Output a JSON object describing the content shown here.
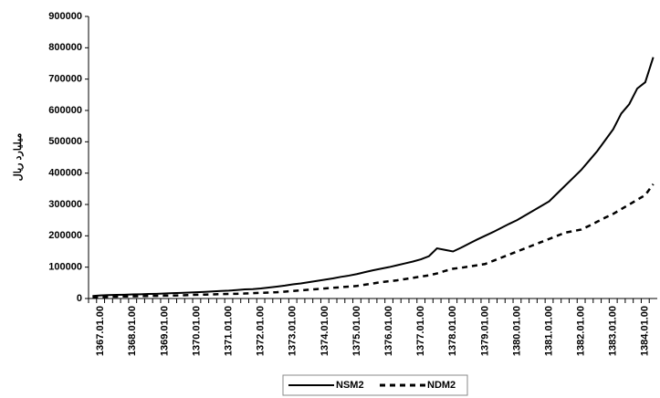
{
  "chart_data": {
    "type": "line",
    "y_label": "میلیارد ریال",
    "categories": [
      null,
      "1367.01.00",
      null,
      null,
      null,
      "1368.01.00",
      null,
      null,
      null,
      "1369.01.00",
      null,
      null,
      null,
      "1370.01.00",
      null,
      null,
      null,
      "1371.01.00",
      null,
      null,
      null,
      "1372.01.00",
      null,
      null,
      null,
      "1373.01.00",
      null,
      null,
      null,
      "1374.01.00",
      null,
      null,
      null,
      "1375.01.00",
      null,
      null,
      null,
      "1376.01.00",
      null,
      null,
      null,
      "1377.01.00",
      null,
      null,
      null,
      "1378.01.00",
      null,
      null,
      null,
      "1379.01.00",
      null,
      null,
      null,
      "1380.01.00",
      null,
      null,
      null,
      "1381.01.00",
      null,
      null,
      null,
      "1382.01.00",
      null,
      null,
      null,
      "1383.01.00",
      null,
      null,
      null,
      "1384.01.00",
      null
    ],
    "series": [
      {
        "name": "NSM2",
        "color": "#000000",
        "dash": false,
        "values": [
          8000,
          10000,
          11000,
          11500,
          12000,
          13000,
          13500,
          14500,
          15000,
          16000,
          17000,
          18000,
          19000,
          20000,
          21000,
          22500,
          24000,
          25000,
          27000,
          29000,
          30000,
          32000,
          35000,
          38000,
          41000,
          45000,
          48000,
          52000,
          56000,
          60000,
          64000,
          69000,
          73000,
          78000,
          84000,
          90000,
          95000,
          100000,
          106000,
          112000,
          118000,
          125000,
          135000,
          160000,
          155000,
          150000,
          162000,
          175000,
          188000,
          200000,
          212000,
          225000,
          238000,
          250000,
          265000,
          280000,
          295000,
          310000,
          335000,
          360000,
          385000,
          410000,
          440000,
          470000,
          505000,
          540000,
          590000,
          620000,
          670000,
          690000,
          770000
        ]
      },
      {
        "name": "NDM2",
        "color": "#000000",
        "dash": true,
        "values": [
          4000,
          5000,
          5500,
          6000,
          6500,
          7000,
          7500,
          8000,
          8500,
          9000,
          9500,
          10000,
          11000,
          12000,
          12500,
          13000,
          14000,
          14500,
          15000,
          16000,
          17000,
          18000,
          19000,
          20000,
          22000,
          24000,
          26000,
          28000,
          30000,
          32000,
          34000,
          36000,
          38000,
          40000,
          44000,
          48000,
          52000,
          55000,
          58000,
          62000,
          66000,
          70000,
          74000,
          80000,
          88000,
          95000,
          98000,
          102000,
          106000,
          110000,
          120000,
          130000,
          140000,
          150000,
          160000,
          170000,
          180000,
          190000,
          200000,
          210000,
          215000,
          220000,
          232000,
          245000,
          258000,
          270000,
          285000,
          300000,
          315000,
          330000,
          365000
        ]
      }
    ],
    "ylim": [
      0,
      900000
    ],
    "yticks": [
      0,
      100000,
      200000,
      300000,
      400000,
      500000,
      600000,
      700000,
      800000,
      900000
    ],
    "grid": false,
    "legend": "bottom"
  }
}
